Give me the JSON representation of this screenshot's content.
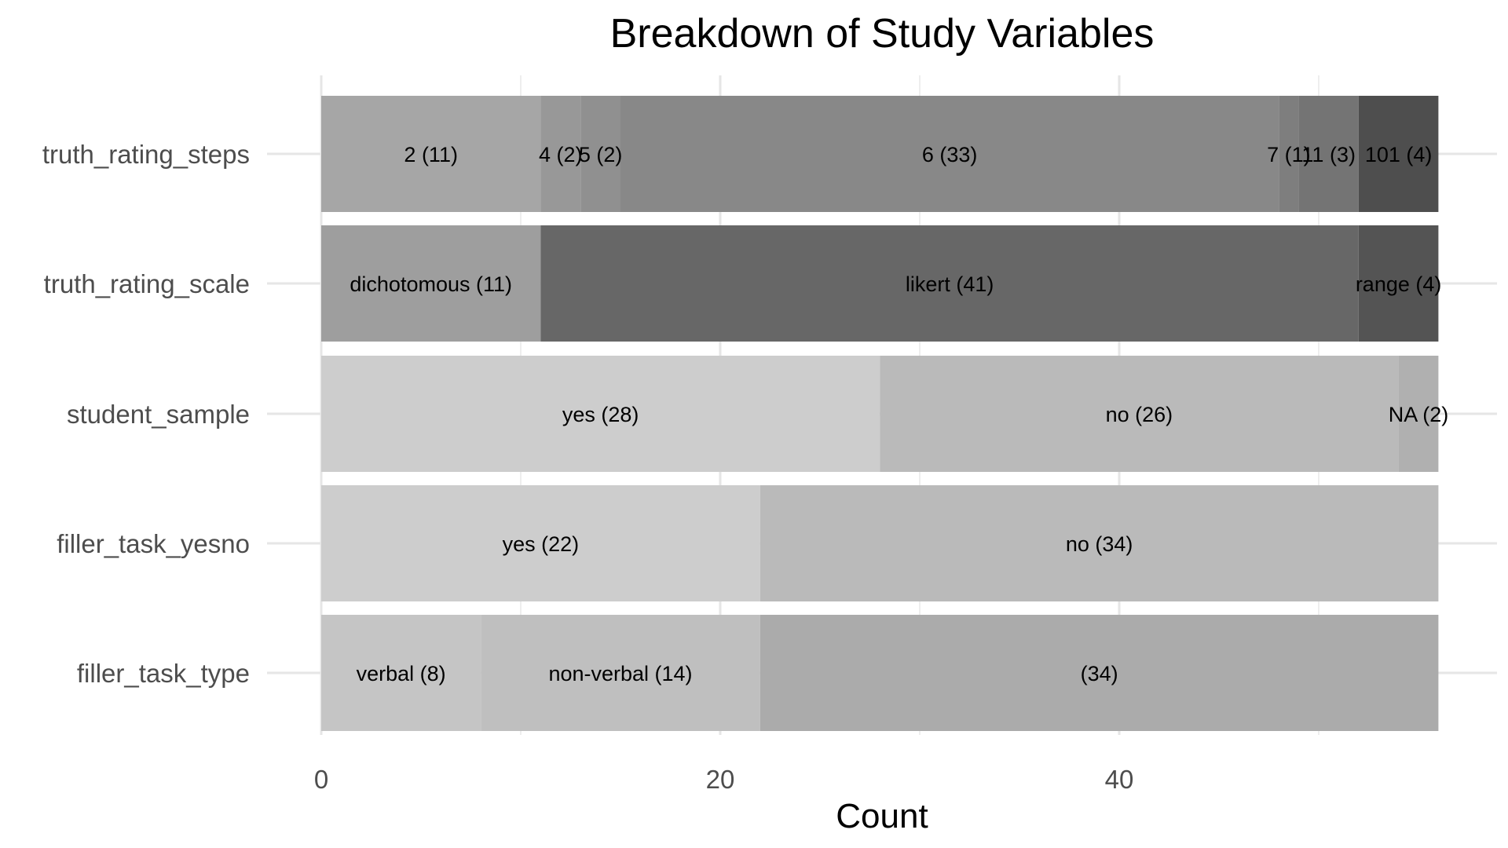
{
  "chart_data": {
    "type": "bar",
    "orientation": "horizontal",
    "stacked": true,
    "title": "Breakdown of Study Variables",
    "xlabel": "Count",
    "ylabel": "",
    "xlim": [
      0,
      56
    ],
    "x_ticks": [
      0,
      20,
      40
    ],
    "grid": true,
    "legend": "none",
    "rows": [
      {
        "label": "truth_rating_steps",
        "segments": [
          {
            "label": "2 (11)",
            "value": 11,
            "color": "#a6a6a6"
          },
          {
            "label": "4 (2)",
            "value": 2,
            "color": "#989898"
          },
          {
            "label": "5 (2)",
            "value": 2,
            "color": "#909090"
          },
          {
            "label": "6 (33)",
            "value": 33,
            "color": "#888888"
          },
          {
            "label": "7 (1)",
            "value": 1,
            "color": "#7e7e7e"
          },
          {
            "label": "11 (3)",
            "value": 3,
            "color": "#747474"
          },
          {
            "label": "101 (4)",
            "value": 4,
            "color": "#4e4e4e"
          }
        ]
      },
      {
        "label": "truth_rating_scale",
        "segments": [
          {
            "label": "dichotomous (11)",
            "value": 11,
            "color": "#9e9e9e"
          },
          {
            "label": "likert (41)",
            "value": 41,
            "color": "#676767"
          },
          {
            "label": "range (4)",
            "value": 4,
            "color": "#545454"
          }
        ]
      },
      {
        "label": "student_sample",
        "segments": [
          {
            "label": "yes (28)",
            "value": 28,
            "color": "#cdcdcd"
          },
          {
            "label": "no (26)",
            "value": 26,
            "color": "#bababa"
          },
          {
            "label": "NA (2)",
            "value": 2,
            "color": "#b0b0b0"
          }
        ]
      },
      {
        "label": "filler_task_yesno",
        "segments": [
          {
            "label": "yes (22)",
            "value": 22,
            "color": "#cdcdcd"
          },
          {
            "label": "no (34)",
            "value": 34,
            "color": "#bababa"
          }
        ]
      },
      {
        "label": "filler_task_type",
        "segments": [
          {
            "label": "verbal (8)",
            "value": 8,
            "color": "#c5c5c5"
          },
          {
            "label": "non-verbal (14)",
            "value": 14,
            "color": "#bfbfbf"
          },
          {
            "label": "(34)",
            "value": 34,
            "color": "#ababab"
          }
        ]
      }
    ]
  }
}
